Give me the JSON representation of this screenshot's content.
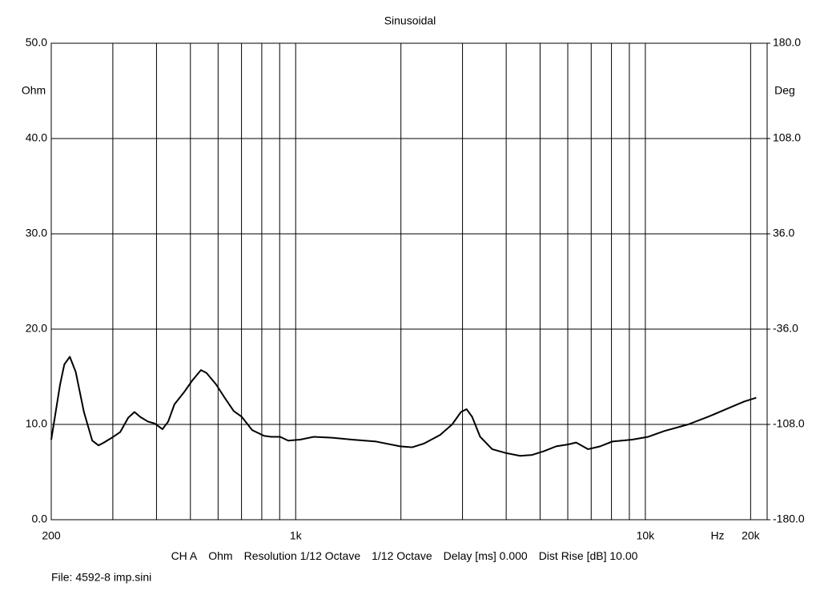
{
  "chart_data": {
    "type": "line",
    "title": "Sinusoidal",
    "y_label": "Ohm",
    "y2_label": "Deg",
    "x_unit": "Hz",
    "log_x": true,
    "grid": true,
    "color": "#000000",
    "xlim": [
      200,
      22300
    ],
    "ylim": [
      0,
      50
    ],
    "y2lim": [
      -180,
      180
    ],
    "xticks": [
      200,
      {
        "value": 1000,
        "label": "1k"
      },
      {
        "value": 10000,
        "label": "10k"
      },
      {
        "value": 20000,
        "label": "20k"
      }
    ],
    "xgrid": [
      300,
      400,
      500,
      600,
      700,
      800,
      900,
      2000,
      3000,
      4000,
      5000,
      6000,
      7000,
      8000,
      9000
    ],
    "yticks": [
      {
        "value": 0,
        "label": "0.0"
      },
      {
        "value": 10,
        "label": "10.0"
      },
      {
        "value": 20,
        "label": "20.0"
      },
      {
        "value": 30,
        "label": "30.0"
      },
      {
        "value": 40,
        "label": "40.0"
      },
      {
        "value": 50,
        "label": "50.0"
      }
    ],
    "y2ticks": [
      {
        "value": -180,
        "label": "-180.0"
      },
      {
        "value": -108,
        "label": "-108.0"
      },
      {
        "value": -36,
        "label": "-36.0"
      },
      {
        "value": 36,
        "label": "36.0"
      },
      {
        "value": 108,
        "label": "108.0"
      },
      {
        "value": 180,
        "label": "180.0"
      }
    ],
    "x": [
      200,
      212,
      218,
      226,
      235,
      248,
      262,
      273,
      283,
      298,
      315,
      332,
      346,
      359,
      378,
      395,
      416,
      432,
      450,
      480,
      506,
      536,
      556,
      592,
      624,
      665,
      701,
      751,
      812,
      852,
      903,
      952,
      1030,
      1126,
      1272,
      1450,
      1699,
      1990,
      2153,
      2331,
      2589,
      2802,
      2969,
      3081,
      3196,
      3370,
      3647,
      3989,
      4385,
      4746,
      5135,
      5557,
      6014,
      6340,
      6861,
      7426,
      8037,
      9168,
      10190,
      11320,
      13260,
      15120,
      17260,
      19170,
      20750
    ],
    "values": [
      8.4,
      14.2,
      16.3,
      17.1,
      15.5,
      11.3,
      8.3,
      7.8,
      8.1,
      8.6,
      9.2,
      10.7,
      11.3,
      10.8,
      10.3,
      10.1,
      9.5,
      10.3,
      12.1,
      13.4,
      14.6,
      15.7,
      15.4,
      14.2,
      12.9,
      11.4,
      10.8,
      9.4,
      8.8,
      8.7,
      8.7,
      8.3,
      8.4,
      8.7,
      8.6,
      8.4,
      8.2,
      7.7,
      7.6,
      8.0,
      8.9,
      10.0,
      11.3,
      11.6,
      10.8,
      8.7,
      7.4,
      7.0,
      6.7,
      6.8,
      7.2,
      7.7,
      7.9,
      8.1,
      7.4,
      7.7,
      8.2,
      8.4,
      8.7,
      9.3,
      10.0,
      10.8,
      11.7,
      12.4,
      12.8
    ]
  },
  "footer": {
    "items": [
      "CH A",
      "Ohm",
      "Resolution 1/12 Octave",
      "1/12 Octave",
      "Delay [ms] 0.000",
      "Dist Rise [dB] 10.00"
    ],
    "file": "File: 4592-8 imp.sini"
  }
}
